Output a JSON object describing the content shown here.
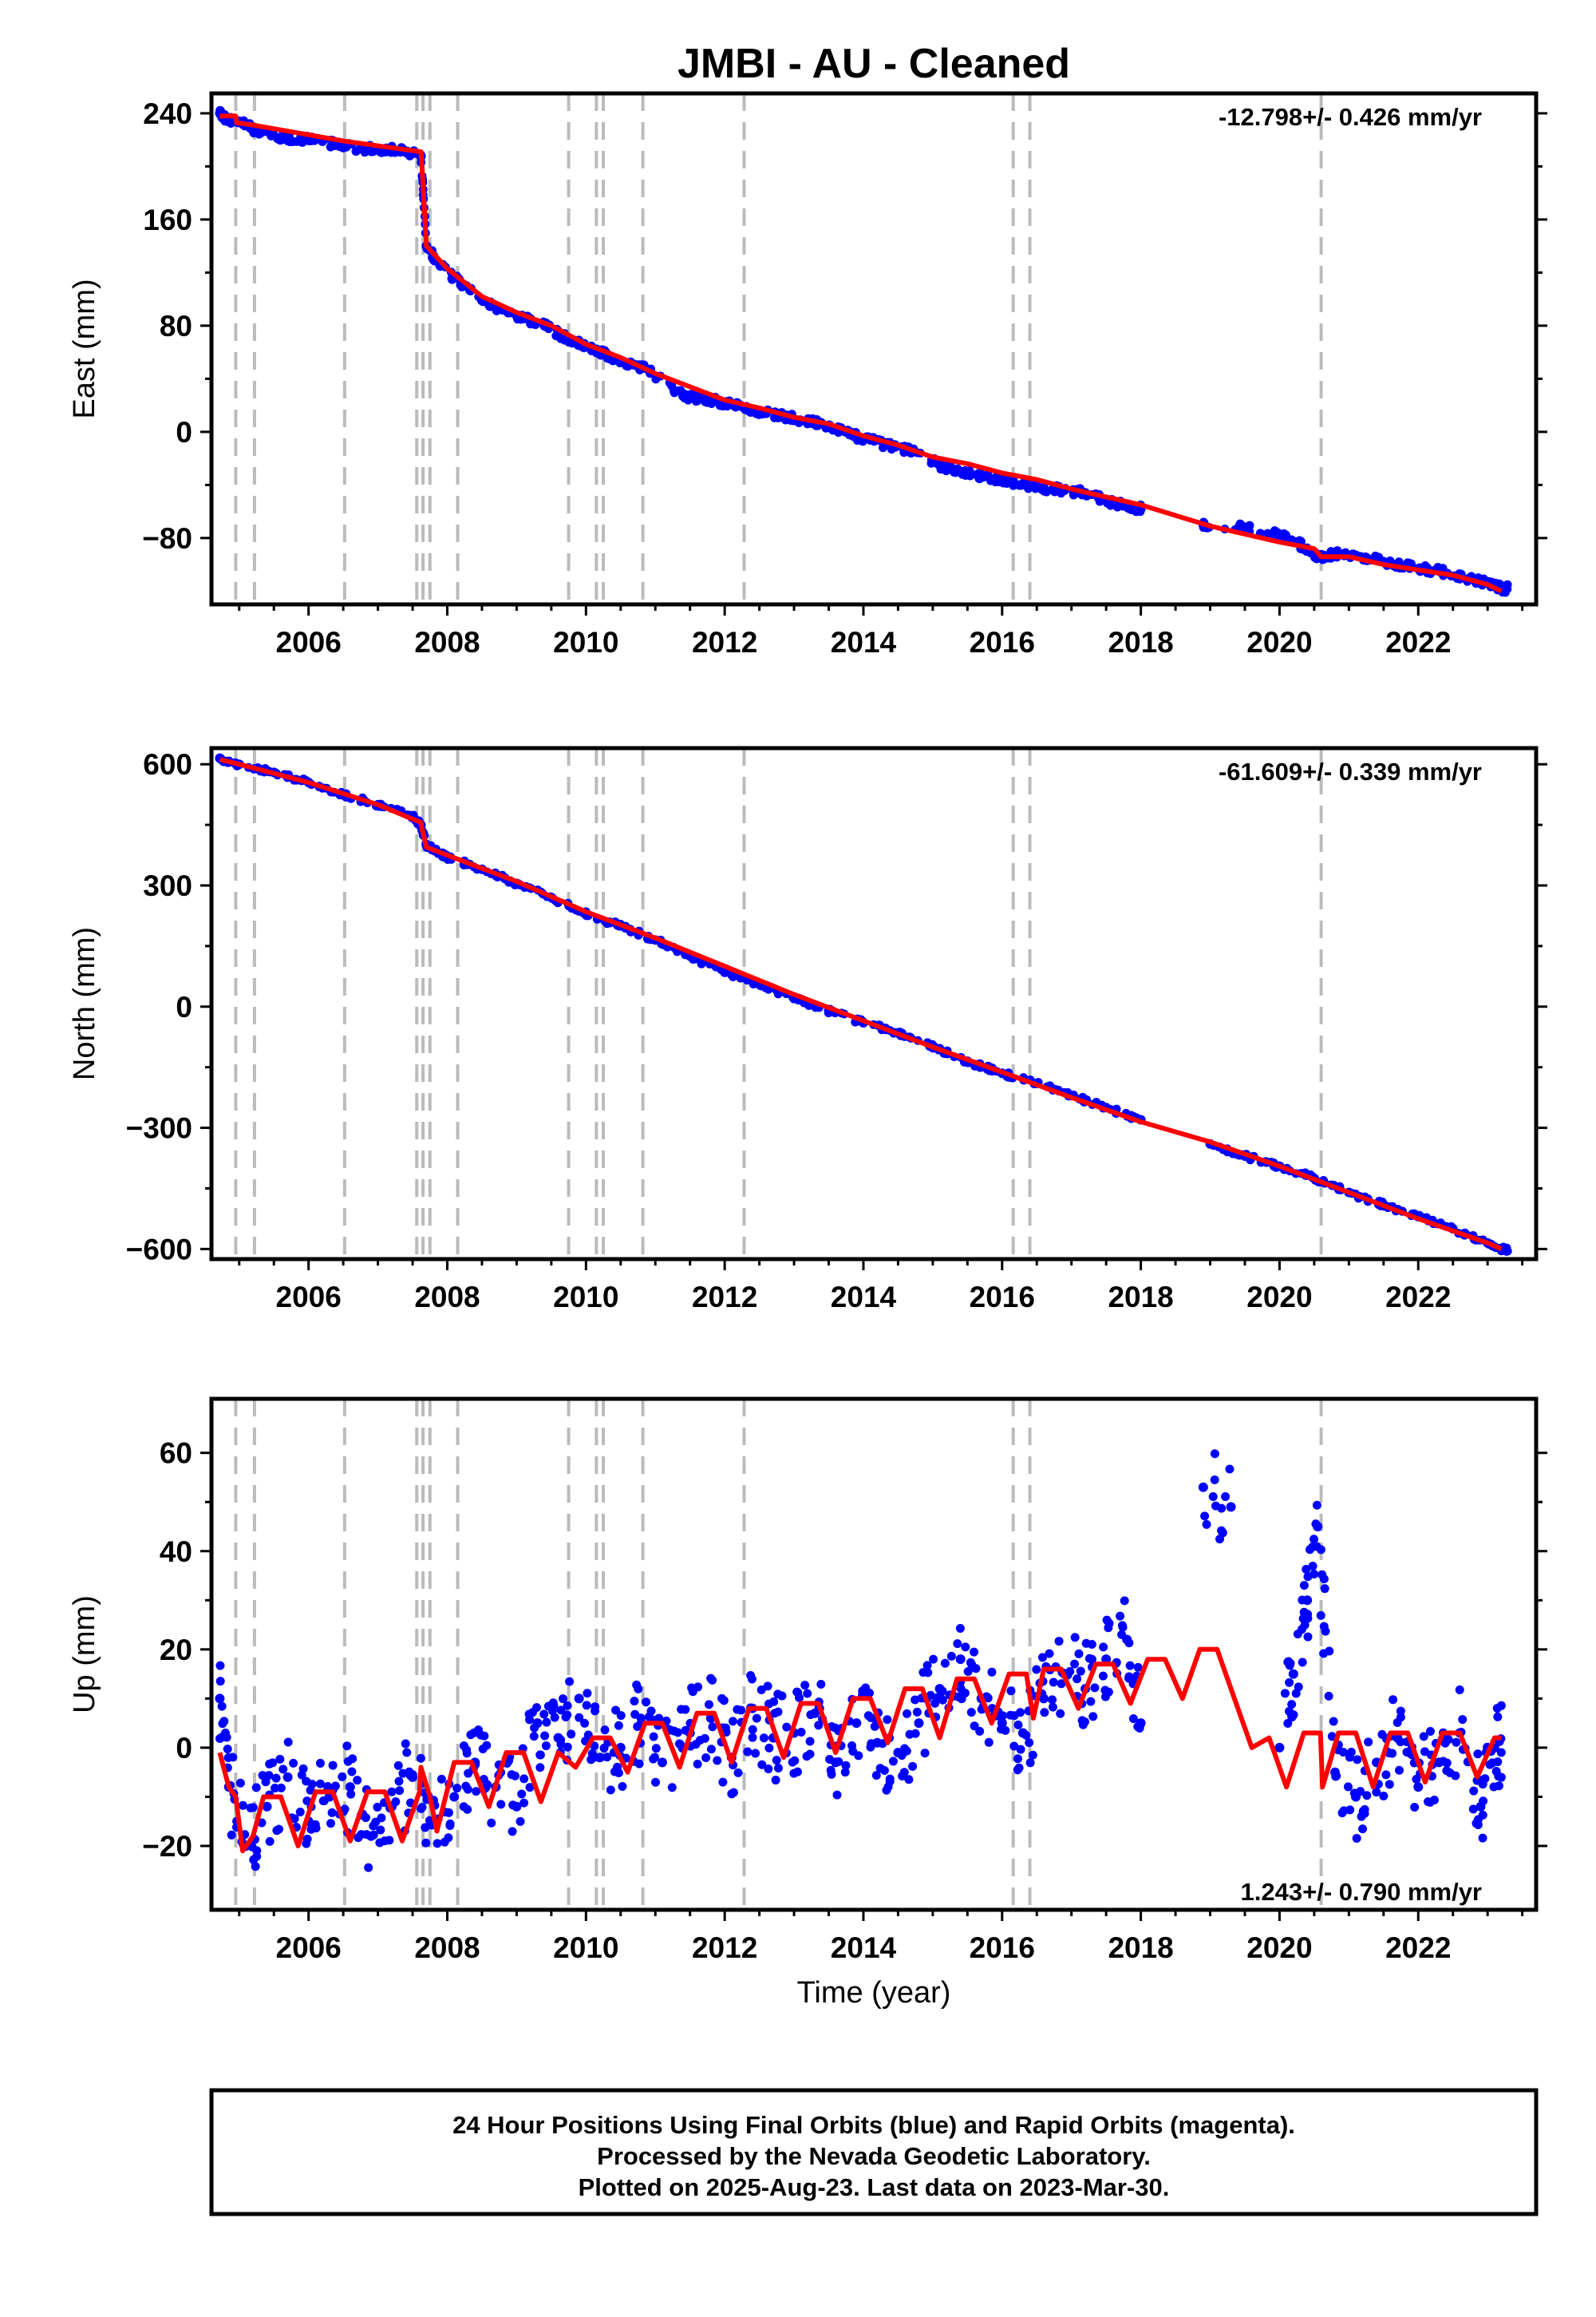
{
  "title": "JMBI  - AU - Cleaned",
  "x_axis_label": "Time (year)",
  "colors": {
    "final_orbits": "#0000ff",
    "model": "#ff0000",
    "equipment_changes": "#bbbbbb"
  },
  "footer": {
    "line1": "24 Hour Positions Using Final Orbits (blue) and Rapid Orbits (magenta).",
    "line2": "Processed by the Nevada Geodetic Laboratory.",
    "line3": "Plotted on 2025-Aug-23. Last data on 2023-Mar-30."
  },
  "chart_data": [
    {
      "type": "scatter",
      "panel": "east",
      "ylabel": "East (mm)",
      "rate_text": "-12.798+/- 0.426 mm/yr",
      "rate_position": "top-right",
      "xlim": [
        2004.6,
        2023.7
      ],
      "ylim": [
        -130,
        255
      ],
      "x_ticks": [
        2006,
        2008,
        2010,
        2012,
        2014,
        2016,
        2018,
        2020,
        2022
      ],
      "y_ticks": [
        -80,
        0,
        80,
        160,
        240
      ],
      "grid": false,
      "vertical_event_lines": [
        2004.95,
        2005.22,
        2006.52,
        2007.56,
        2007.65,
        2007.75,
        2008.15,
        2009.75,
        2010.15,
        2010.25,
        2010.82,
        2012.28,
        2016.16,
        2016.4,
        2020.6
      ],
      "series": [
        {
          "kind": "observations",
          "x": [
            2004.72,
            2004.8,
            2005.0,
            2005.3,
            2005.6,
            2005.9,
            2006.2,
            2006.5,
            2006.8,
            2007.1,
            2007.4,
            2007.62,
            2007.7,
            2007.9,
            2008.2,
            2008.5,
            2008.8,
            2009.1,
            2009.4,
            2009.7,
            2010.0,
            2010.3,
            2010.6,
            2010.9,
            2011.4,
            2011.7,
            2012.0,
            2012.3,
            2012.6,
            2012.9,
            2013.2,
            2013.5,
            2013.8,
            2014.1,
            2014.4,
            2014.7,
            2015.1,
            2015.4,
            2015.7,
            2016.0,
            2016.3,
            2016.6,
            2016.9,
            2017.2,
            2017.5,
            2017.8,
            2018.0,
            2018.9,
            2019.5,
            2020.0,
            2020.3,
            2020.55,
            2020.8,
            2021.1,
            2021.4,
            2021.7,
            2022.0,
            2022.3,
            2022.6,
            2022.9,
            2023.1,
            2023.2
          ],
          "y": [
            240,
            236,
            234,
            225,
            222,
            221,
            219,
            215,
            213,
            213,
            211,
            208,
            140,
            125,
            112,
            99,
            92,
            86,
            80,
            71,
            64,
            58,
            52,
            47,
            27,
            25,
            22,
            18,
            14,
            11,
            8,
            5,
            -2,
            -6,
            -11,
            -15,
            -25,
            -30,
            -33,
            -36,
            -39,
            -42,
            -44,
            -46,
            -52,
            -56,
            -58,
            -70,
            -72,
            -78,
            -85,
            -95,
            -92,
            -93,
            -96,
            -100,
            -103,
            -105,
            -108,
            -113,
            -115,
            -118
          ]
        },
        {
          "kind": "model",
          "x": [
            2004.72,
            2004.95,
            2004.96,
            2005.22,
            2006.52,
            2007.62,
            2007.63,
            2007.7,
            2008.0,
            2008.5,
            2009.0,
            2009.5,
            2010.0,
            2010.5,
            2011.0,
            2011.5,
            2012.0,
            2012.5,
            2013.0,
            2013.5,
            2014.0,
            2014.5,
            2015.0,
            2015.5,
            2016.0,
            2016.5,
            2017.0,
            2017.5,
            2018.0,
            2018.5,
            2019.0,
            2019.5,
            2020.0,
            2020.5,
            2020.6,
            2021.0,
            2021.5,
            2022.0,
            2022.5,
            2023.0,
            2023.2
          ],
          "y": [
            238,
            238,
            233,
            231,
            219,
            211,
            205,
            140,
            123,
            102,
            90,
            80,
            66,
            56,
            44,
            34,
            24,
            18,
            11,
            6,
            -3,
            -10,
            -19,
            -24,
            -31,
            -36,
            -43,
            -49,
            -55,
            -63,
            -71,
            -77,
            -83,
            -88,
            -94,
            -94,
            -100,
            -104,
            -108,
            -115,
            -120
          ]
        }
      ]
    },
    {
      "type": "scatter",
      "panel": "north",
      "ylabel": "North (mm)",
      "rate_text": "-61.609+/- 0.339 mm/yr",
      "rate_position": "top-right",
      "xlim": [
        2004.6,
        2023.7
      ],
      "ylim": [
        -625,
        640
      ],
      "x_ticks": [
        2006,
        2008,
        2010,
        2012,
        2014,
        2016,
        2018,
        2020,
        2022
      ],
      "y_ticks": [
        -600,
        -300,
        0,
        300,
        600
      ],
      "grid": false,
      "vertical_event_lines": [
        2004.95,
        2005.22,
        2006.52,
        2007.56,
        2007.65,
        2007.75,
        2008.15,
        2009.75,
        2010.15,
        2010.25,
        2010.82,
        2012.28,
        2016.16,
        2016.4,
        2020.6
      ],
      "series": [
        {
          "kind": "observations",
          "x": [
            2004.72,
            2005.0,
            2005.5,
            2006.0,
            2006.5,
            2007.0,
            2007.5,
            2007.62,
            2007.7,
            2008.0,
            2008.5,
            2009.0,
            2009.5,
            2010.0,
            2010.5,
            2011.0,
            2011.5,
            2012.0,
            2012.5,
            2013.0,
            2013.5,
            2014.0,
            2014.5,
            2015.0,
            2015.5,
            2016.0,
            2016.5,
            2017.0,
            2017.5,
            2018.0,
            2019.0,
            2019.5,
            2020.0,
            2020.5,
            2021.0,
            2021.5,
            2022.0,
            2022.5,
            2023.0,
            2023.2
          ],
          "y": [
            615,
            600,
            580,
            555,
            525,
            500,
            470,
            450,
            400,
            370,
            340,
            305,
            270,
            230,
            200,
            165,
            125,
            85,
            55,
            20,
            -10,
            -40,
            -65,
            -100,
            -135,
            -165,
            -190,
            -220,
            -250,
            -280,
            -340,
            -370,
            -395,
            -425,
            -460,
            -490,
            -520,
            -550,
            -585,
            -600
          ]
        },
        {
          "kind": "model",
          "x": [
            2004.72,
            2005.0,
            2006.0,
            2007.0,
            2007.62,
            2007.63,
            2007.7,
            2008.0,
            2009.0,
            2010.0,
            2011.0,
            2012.0,
            2013.0,
            2014.0,
            2015.0,
            2016.0,
            2017.0,
            2018.0,
            2019.0,
            2020.0,
            2021.0,
            2022.0,
            2023.0,
            2023.2
          ],
          "y": [
            612,
            600,
            555,
            500,
            456,
            445,
            395,
            375,
            310,
            235,
            170,
            100,
            30,
            -35,
            -100,
            -162,
            -225,
            -285,
            -335,
            -395,
            -460,
            -525,
            -585,
            -600
          ]
        }
      ]
    },
    {
      "type": "scatter",
      "panel": "up",
      "ylabel": "Up (mm)",
      "rate_text": "1.243+/- 0.790 mm/yr",
      "rate_position": "bottom-right",
      "xlim": [
        2004.6,
        2023.7
      ],
      "ylim": [
        -33,
        71
      ],
      "x_ticks": [
        2006,
        2008,
        2010,
        2012,
        2014,
        2016,
        2018,
        2020,
        2022
      ],
      "y_ticks": [
        -20,
        0,
        20,
        40,
        60
      ],
      "grid": false,
      "vertical_event_lines": [
        2004.95,
        2005.22,
        2006.52,
        2007.56,
        2007.65,
        2007.75,
        2008.15,
        2009.75,
        2010.15,
        2010.25,
        2010.82,
        2012.28,
        2016.16,
        2016.4,
        2020.6
      ],
      "series": [
        {
          "kind": "observations",
          "x": [
            2004.72,
            2004.85,
            2005.1,
            2005.4,
            2005.7,
            2006.0,
            2006.3,
            2006.6,
            2006.9,
            2007.2,
            2007.5,
            2007.8,
            2008.1,
            2008.4,
            2008.7,
            2009.0,
            2009.3,
            2009.6,
            2009.9,
            2010.2,
            2010.5,
            2010.8,
            2011.1,
            2011.5,
            2011.8,
            2012.1,
            2012.4,
            2012.7,
            2013.0,
            2013.3,
            2013.6,
            2013.9,
            2014.2,
            2014.5,
            2014.8,
            2015.1,
            2015.4,
            2015.7,
            2016.0,
            2016.3,
            2016.6,
            2016.9,
            2017.2,
            2017.5,
            2017.8,
            2018.0,
            2018.9,
            2019.3,
            2020.0,
            2020.2,
            2020.4,
            2020.55,
            2020.8,
            2021.1,
            2021.4,
            2021.7,
            2022.0,
            2022.3,
            2022.6,
            2022.9,
            2023.1
          ],
          "y": [
            10,
            -8,
            -20,
            -12,
            -6,
            -15,
            -10,
            -8,
            -18,
            -12,
            -6,
            -15,
            -10,
            -3,
            -8,
            -12,
            5,
            2,
            10,
            -2,
            0,
            5,
            -3,
            3,
            6,
            -2,
            8,
            2,
            3,
            7,
            -3,
            5,
            1,
            -1,
            5,
            12,
            18,
            10,
            5,
            3,
            10,
            15,
            12,
            18,
            22,
            5,
            53,
            49,
            0,
            15,
            30,
            45,
            -5,
            -10,
            -3,
            2,
            -8,
            -3,
            3,
            -12,
            0
          ]
        },
        {
          "kind": "model",
          "x": [
            2004.72,
            2004.85,
            2004.95,
            2005.05,
            2005.2,
            2005.35,
            2005.6,
            2005.85,
            2006.1,
            2006.35,
            2006.6,
            2006.85,
            2007.1,
            2007.35,
            2007.6,
            2007.62,
            2007.75,
            2007.85,
            2008.1,
            2008.35,
            2008.6,
            2008.85,
            2009.1,
            2009.35,
            2009.6,
            2009.85,
            2010.1,
            2010.35,
            2010.6,
            2010.85,
            2011.1,
            2011.35,
            2011.6,
            2011.85,
            2012.1,
            2012.35,
            2012.6,
            2012.85,
            2013.1,
            2013.35,
            2013.6,
            2013.85,
            2014.1,
            2014.35,
            2014.6,
            2014.85,
            2015.1,
            2015.35,
            2015.6,
            2015.85,
            2016.1,
            2016.35,
            2016.45,
            2016.6,
            2016.85,
            2017.1,
            2017.35,
            2017.6,
            2017.85,
            2018.1,
            2018.35,
            2018.6,
            2018.85,
            2019.1,
            2019.35,
            2019.6,
            2019.85,
            2020.1,
            2020.35,
            2020.59,
            2020.62,
            2020.85,
            2021.1,
            2021.35,
            2021.6,
            2021.85,
            2022.1,
            2022.35,
            2022.6,
            2022.85,
            2023.1,
            2023.2
          ],
          "y": [
            -1,
            -8,
            -10,
            -21,
            -18,
            -10,
            -10,
            -20,
            -9,
            -9,
            -19,
            -9,
            -9,
            -19,
            -9,
            -4,
            -10,
            -17,
            -3,
            -3,
            -12,
            -1,
            -1,
            -11,
            -1,
            -4,
            2,
            2,
            -5,
            5,
            5,
            -4,
            7,
            7,
            -3,
            8,
            8,
            -2,
            9,
            9,
            -1,
            10,
            10,
            1,
            12,
            12,
            2,
            14,
            14,
            5,
            15,
            15,
            6,
            16,
            16,
            8,
            17,
            17,
            9,
            18,
            18,
            10,
            20,
            20,
            10,
            0,
            2,
            -8,
            3,
            3,
            -8,
            3,
            3,
            -8,
            3,
            3,
            -7,
            3,
            3,
            -6,
            2,
            2
          ]
        }
      ]
    }
  ]
}
